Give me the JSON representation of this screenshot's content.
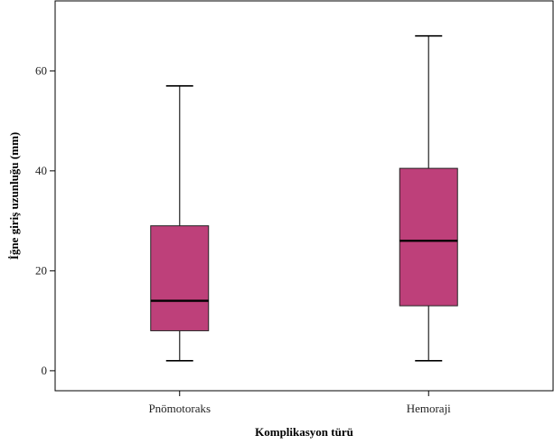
{
  "chart_data": {
    "type": "boxplot",
    "xlabel": "Komplikasyon türü",
    "ylabel": "İğne giriş uzunluğu (mm)",
    "ylim": [
      -4,
      74
    ],
    "yticks": [
      0,
      20,
      40,
      60
    ],
    "grid": false,
    "colors": {
      "box_fill": "#be407a",
      "line": "#000000",
      "whisker": "#333333"
    },
    "categories": [
      "Pnömotoraks",
      "Hemoraji"
    ],
    "boxes": [
      {
        "category": "Pnömotoraks",
        "min": 2,
        "q1": 8,
        "median": 14,
        "q3": 29,
        "max": 57
      },
      {
        "category": "Hemoraji",
        "min": 2,
        "q1": 13,
        "median": 26,
        "q3": 40.5,
        "max": 67
      }
    ]
  }
}
